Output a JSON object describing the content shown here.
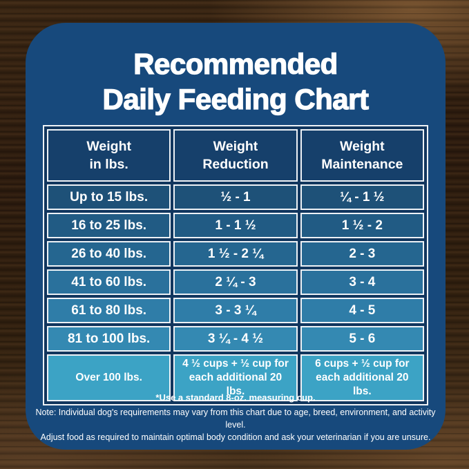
{
  "title": {
    "line1": "Recommended",
    "line2": "Daily Feeding Chart"
  },
  "colors": {
    "card_background": "#17497c",
    "table_gap": "#11365e",
    "table_border": "#eef2f6",
    "header_cell": "#16406b",
    "text": "#ffffff",
    "row_colors": [
      "#1e5178",
      "#215b84",
      "#256690",
      "#2a719c",
      "#2f7da8",
      "#3489b2",
      "#3ca3c5"
    ],
    "wood_dark": "#2c1b0e",
    "wood_light": "#7a5432"
  },
  "chart_data": {
    "type": "table",
    "title": "Recommended Daily Feeding Chart",
    "columns": [
      "Weight in lbs.",
      "Weight Reduction",
      "Weight Maintenance"
    ],
    "rows": [
      [
        "Up to 15 lbs.",
        "½ - 1",
        "¼ - 1 ½"
      ],
      [
        "16 to 25 lbs.",
        "1 - 1 ½",
        "1 ½ - 2"
      ],
      [
        "26 to 40 lbs.",
        "1 ½ - 2 ¼",
        "2 - 3"
      ],
      [
        "41 to 60 lbs.",
        "2 ¼ - 3",
        "3 - 4"
      ],
      [
        "61 to 80 lbs.",
        "3 - 3 ¼",
        "4 - 5"
      ],
      [
        "81 to 100 lbs.",
        "3 ¼ - 4 ½",
        "5 - 6"
      ],
      [
        "Over 100 lbs.",
        "4 ½ cups + ½ cup for each additional 20 lbs.",
        "6 cups + ½ cup for each additional 20 lbs."
      ]
    ]
  },
  "table": {
    "headers": [
      "Weight\nin lbs.",
      "Weight\nReduction",
      "Weight\nMaintenance"
    ],
    "rows": [
      {
        "weight": "Up to 15 lbs.",
        "reduction": "½ - 1",
        "maintenance": "¼ - 1 ½"
      },
      {
        "weight": "16 to 25 lbs.",
        "reduction": "1 - 1 ½",
        "maintenance": "1 ½ - 2"
      },
      {
        "weight": "26 to 40 lbs.",
        "reduction": "1 ½ - 2 ¼",
        "maintenance": "2 - 3"
      },
      {
        "weight": "41 to 60 lbs.",
        "reduction": "2 ¼ - 3",
        "maintenance": "3 - 4"
      },
      {
        "weight": "61 to 80 lbs.",
        "reduction": "3 - 3 ¼",
        "maintenance": "4 - 5"
      },
      {
        "weight": "81 to 100 lbs.",
        "reduction": "3 ¼ - 4 ½",
        "maintenance": "5 - 6"
      },
      {
        "weight": "Over 100 lbs.",
        "reduction": "4 ½ cups  + ½ cup for each additional 20 lbs.",
        "maintenance": "6 cups  + ½ cup for each additional 20 lbs."
      }
    ]
  },
  "notes": {
    "cup": "*Use a standard 8-oz. measuring cup.",
    "line1": "Note: Individual dog's requirements may vary from this chart due to age, breed, environment, and activity level.",
    "line2": "Adjust food as required to maintain optimal body condition and ask your veterinarian if you are unsure."
  }
}
